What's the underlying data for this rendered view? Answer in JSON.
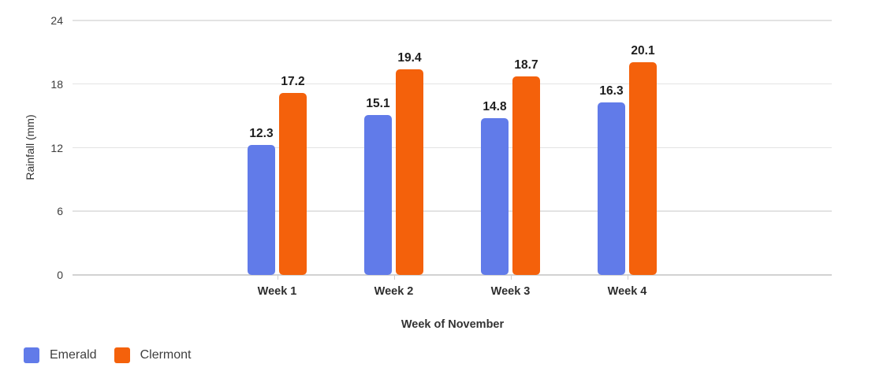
{
  "chart_data": {
    "type": "bar",
    "title": "",
    "xlabel": "Week of November",
    "ylabel": "Rainfall (mm)",
    "categories": [
      "Week 1",
      "Week 2",
      "Week 3",
      "Week 4"
    ],
    "series": [
      {
        "name": "Emerald",
        "color": "#617BE9",
        "values": [
          12.3,
          15.1,
          14.8,
          16.3
        ]
      },
      {
        "name": "Clermont",
        "color": "#F4610B",
        "values": [
          17.2,
          19.4,
          18.7,
          20.1
        ]
      }
    ],
    "ylim": [
      0,
      24
    ],
    "yticks": [
      0,
      6,
      12,
      18,
      24
    ],
    "grid": true,
    "legend_position": "bottom-left",
    "value_labels": true
  },
  "colors": {
    "background": "#ffffff",
    "gridline": "#e3e3e3",
    "baseline": "#d2d2d2",
    "tick_text": "#3d3d3d",
    "value_label_text": "#1e1e1e",
    "legend_text": "#3f3f3f"
  }
}
